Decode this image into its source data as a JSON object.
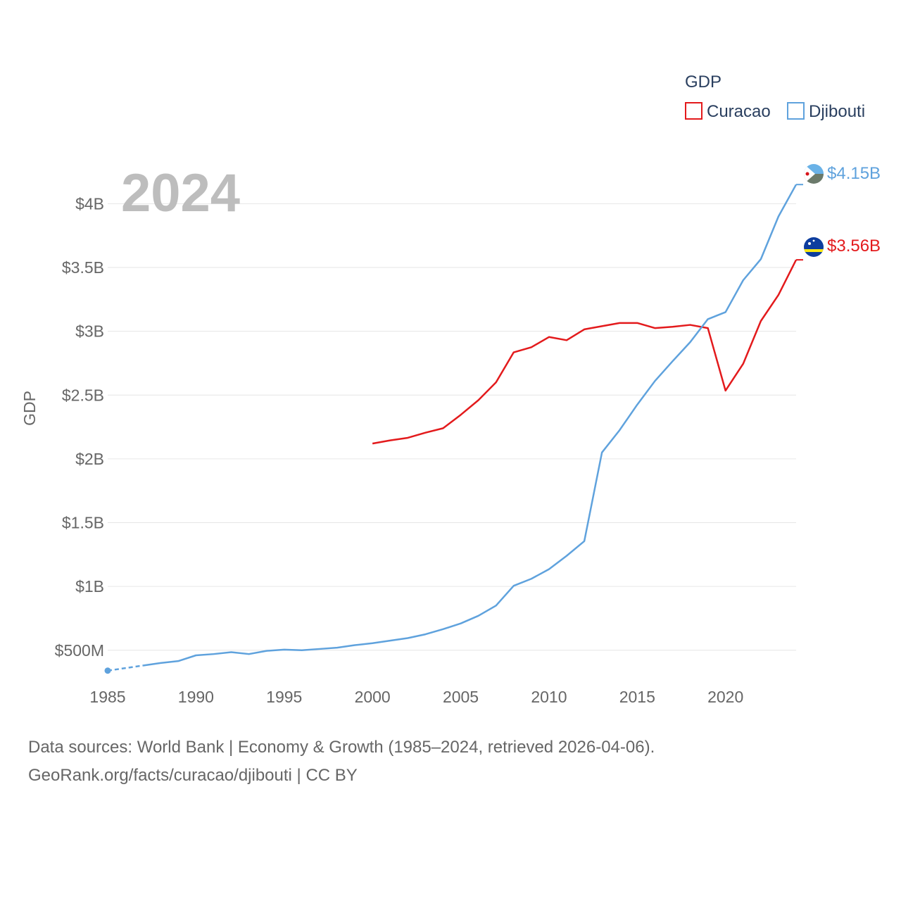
{
  "chart_data": {
    "type": "line",
    "title": "GDP",
    "ylabel": "GDP",
    "year_label": "2024",
    "xlim": [
      1985,
      2024
    ],
    "ylim": [
      300000000,
      4300000000
    ],
    "x_ticks": [
      {
        "value": 1985,
        "label": "1985"
      },
      {
        "value": 1990,
        "label": "1990"
      },
      {
        "value": 1995,
        "label": "1995"
      },
      {
        "value": 2000,
        "label": "2000"
      },
      {
        "value": 2005,
        "label": "2005"
      },
      {
        "value": 2010,
        "label": "2010"
      },
      {
        "value": 2015,
        "label": "2015"
      },
      {
        "value": 2020,
        "label": "2020"
      }
    ],
    "y_ticks": [
      {
        "value": 500000000,
        "label": "$500M"
      },
      {
        "value": 1000000000,
        "label": "$1B"
      },
      {
        "value": 1500000000,
        "label": "$1.5B"
      },
      {
        "value": 2000000000,
        "label": "$2B"
      },
      {
        "value": 2500000000,
        "label": "$2.5B"
      },
      {
        "value": 3000000000,
        "label": "$3B"
      },
      {
        "value": 3500000000,
        "label": "$3.5B"
      },
      {
        "value": 4000000000,
        "label": "$4B"
      }
    ],
    "series": [
      {
        "name": "Curacao",
        "color": "#e31a1c",
        "end_label": "$3.56B",
        "x": [
          2000,
          2001,
          2002,
          2003,
          2004,
          2005,
          2006,
          2007,
          2008,
          2009,
          2010,
          2011,
          2012,
          2013,
          2014,
          2015,
          2016,
          2017,
          2018,
          2019,
          2020,
          2021,
          2022,
          2023,
          2024
        ],
        "values": [
          2120000000,
          2145000000,
          2165000000,
          2205000000,
          2240000000,
          2345000000,
          2460000000,
          2600000000,
          2835000000,
          2875000000,
          2955000000,
          2930000000,
          3015000000,
          3040000000,
          3065000000,
          3065000000,
          3025000000,
          3035000000,
          3050000000,
          3025000000,
          2535000000,
          2745000000,
          3080000000,
          3285000000,
          3560000000
        ]
      },
      {
        "name": "Djibouti",
        "color": "#5fa2dd",
        "end_label": "$4.15B",
        "x": [
          1985,
          1986,
          1987,
          1988,
          1989,
          1990,
          1991,
          1992,
          1993,
          1994,
          1995,
          1996,
          1997,
          1998,
          1999,
          2000,
          2001,
          2002,
          2003,
          2004,
          2005,
          2006,
          2007,
          2008,
          2009,
          2010,
          2011,
          2012,
          2013,
          2014,
          2015,
          2016,
          2017,
          2018,
          2019,
          2020,
          2021,
          2022,
          2023,
          2024
        ],
        "values": [
          340000000,
          360000000,
          380000000,
          400000000,
          415000000,
          460000000,
          470000000,
          485000000,
          470000000,
          495000000,
          505000000,
          500000000,
          510000000,
          520000000,
          540000000,
          555000000,
          575000000,
          595000000,
          625000000,
          665000000,
          710000000,
          770000000,
          850000000,
          1005000000,
          1060000000,
          1135000000,
          1240000000,
          1355000000,
          2050000000,
          2225000000,
          2425000000,
          2610000000,
          2765000000,
          2915000000,
          3095000000,
          3150000000,
          3400000000,
          3565000000,
          3900000000,
          4150000000
        ]
      }
    ],
    "legend": {
      "title": "GDP",
      "position": "top-right"
    }
  },
  "source": {
    "line1": "Data sources: World Bank | Economy & Growth (1985–2024, retrieved 2026-04-06).",
    "line2": "GeoRank.org/facts/curacao/djibouti | CC BY"
  }
}
